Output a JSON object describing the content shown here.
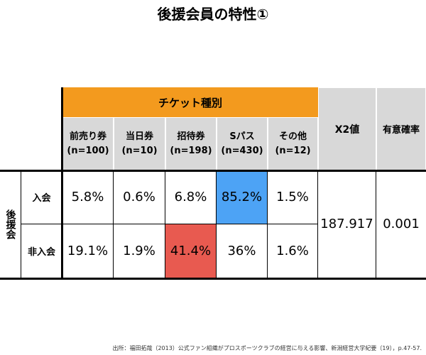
{
  "title": "後援会員の特性①",
  "table": {
    "group_header": "チケット種別",
    "columns": [
      {
        "name": "前売り券",
        "n": "(n=100)"
      },
      {
        "name": "当日券",
        "n": "(n=10)"
      },
      {
        "name": "招待券",
        "n": "(n=198)"
      },
      {
        "name": "Sパス",
        "n": "(n=430)"
      },
      {
        "name": "その他",
        "n": "(n=12)"
      }
    ],
    "right_headers": [
      "X2値",
      "有意確率"
    ],
    "row_group": "後援会",
    "rows": [
      {
        "label": "入会",
        "values": [
          "5.8%",
          "0.6%",
          "6.8%",
          "85.2%",
          "1.5%"
        ]
      },
      {
        "label": "非入会",
        "values": [
          "19.1%",
          "1.9%",
          "41.4%",
          "36%",
          "1.6%"
        ]
      }
    ],
    "chi2": "187.917",
    "p": "0.001"
  },
  "source": "出所：福田拓哉（2013）公式ファン組織がプロスポーツクラブの経営に与える影響、新潟経営大学紀要（19），p.47-57."
}
